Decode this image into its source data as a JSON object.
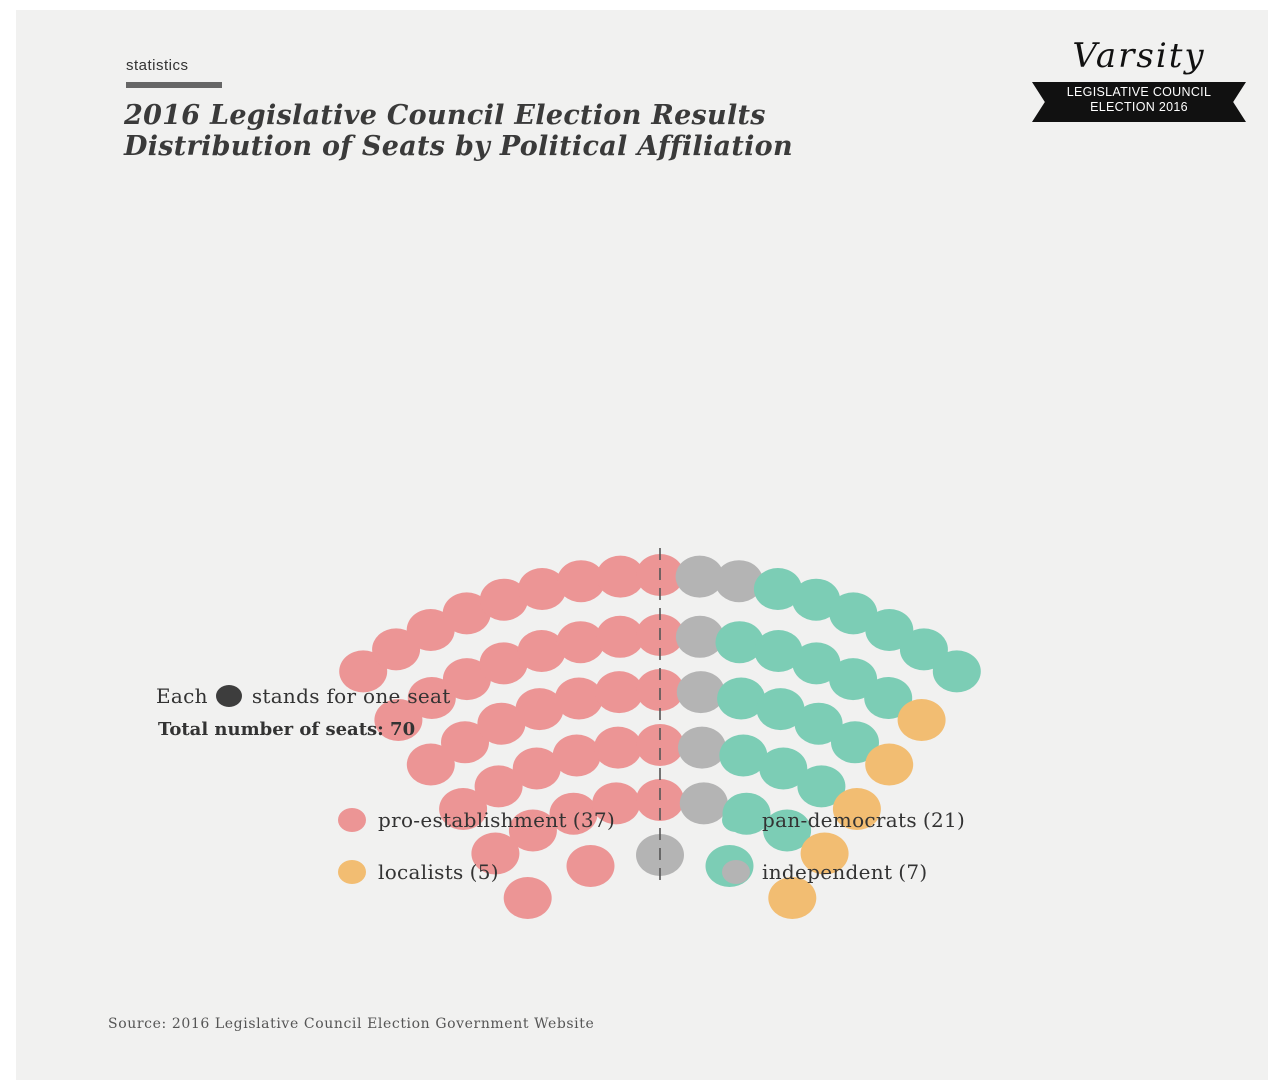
{
  "header": {
    "section_label": "statistics",
    "title_line1": "2016 Legislative Council Election Results",
    "title_line2": "Distribution of Seats by Political Affiliation"
  },
  "brand": {
    "name": "Varsity",
    "ribbon_line1": "LEGISLATIVE COUNCIL",
    "ribbon_line2": "ELECTION 2016"
  },
  "note": {
    "each_prefix": "Each",
    "each_suffix": "stands for one seat",
    "total": "Total number of seats: 70"
  },
  "legend": [
    {
      "label": "pro-establishment",
      "count": "(37)",
      "color": "#ec9595"
    },
    {
      "label": "pan-democrats",
      "count": "(21)",
      "color": "#7ccdb5"
    },
    {
      "label": "localists",
      "count": "(5)",
      "color": "#f2bd72"
    },
    {
      "label": "independent",
      "count": "(7)",
      "color": "#b4b4b4"
    }
  ],
  "source": "Source: 2016 Legislative Council Election Government Website",
  "chart_data": {
    "type": "parliament",
    "total_seats": 70,
    "categories": [
      "pro-establishment",
      "independent",
      "pan-democrats",
      "localists"
    ],
    "values": [
      37,
      7,
      21,
      5
    ],
    "colors": [
      "#ec9595",
      "#b4b4b4",
      "#7ccdb5",
      "#f2bd72"
    ],
    "divider": "dashed line between pro-establishment and the remaining seats"
  }
}
